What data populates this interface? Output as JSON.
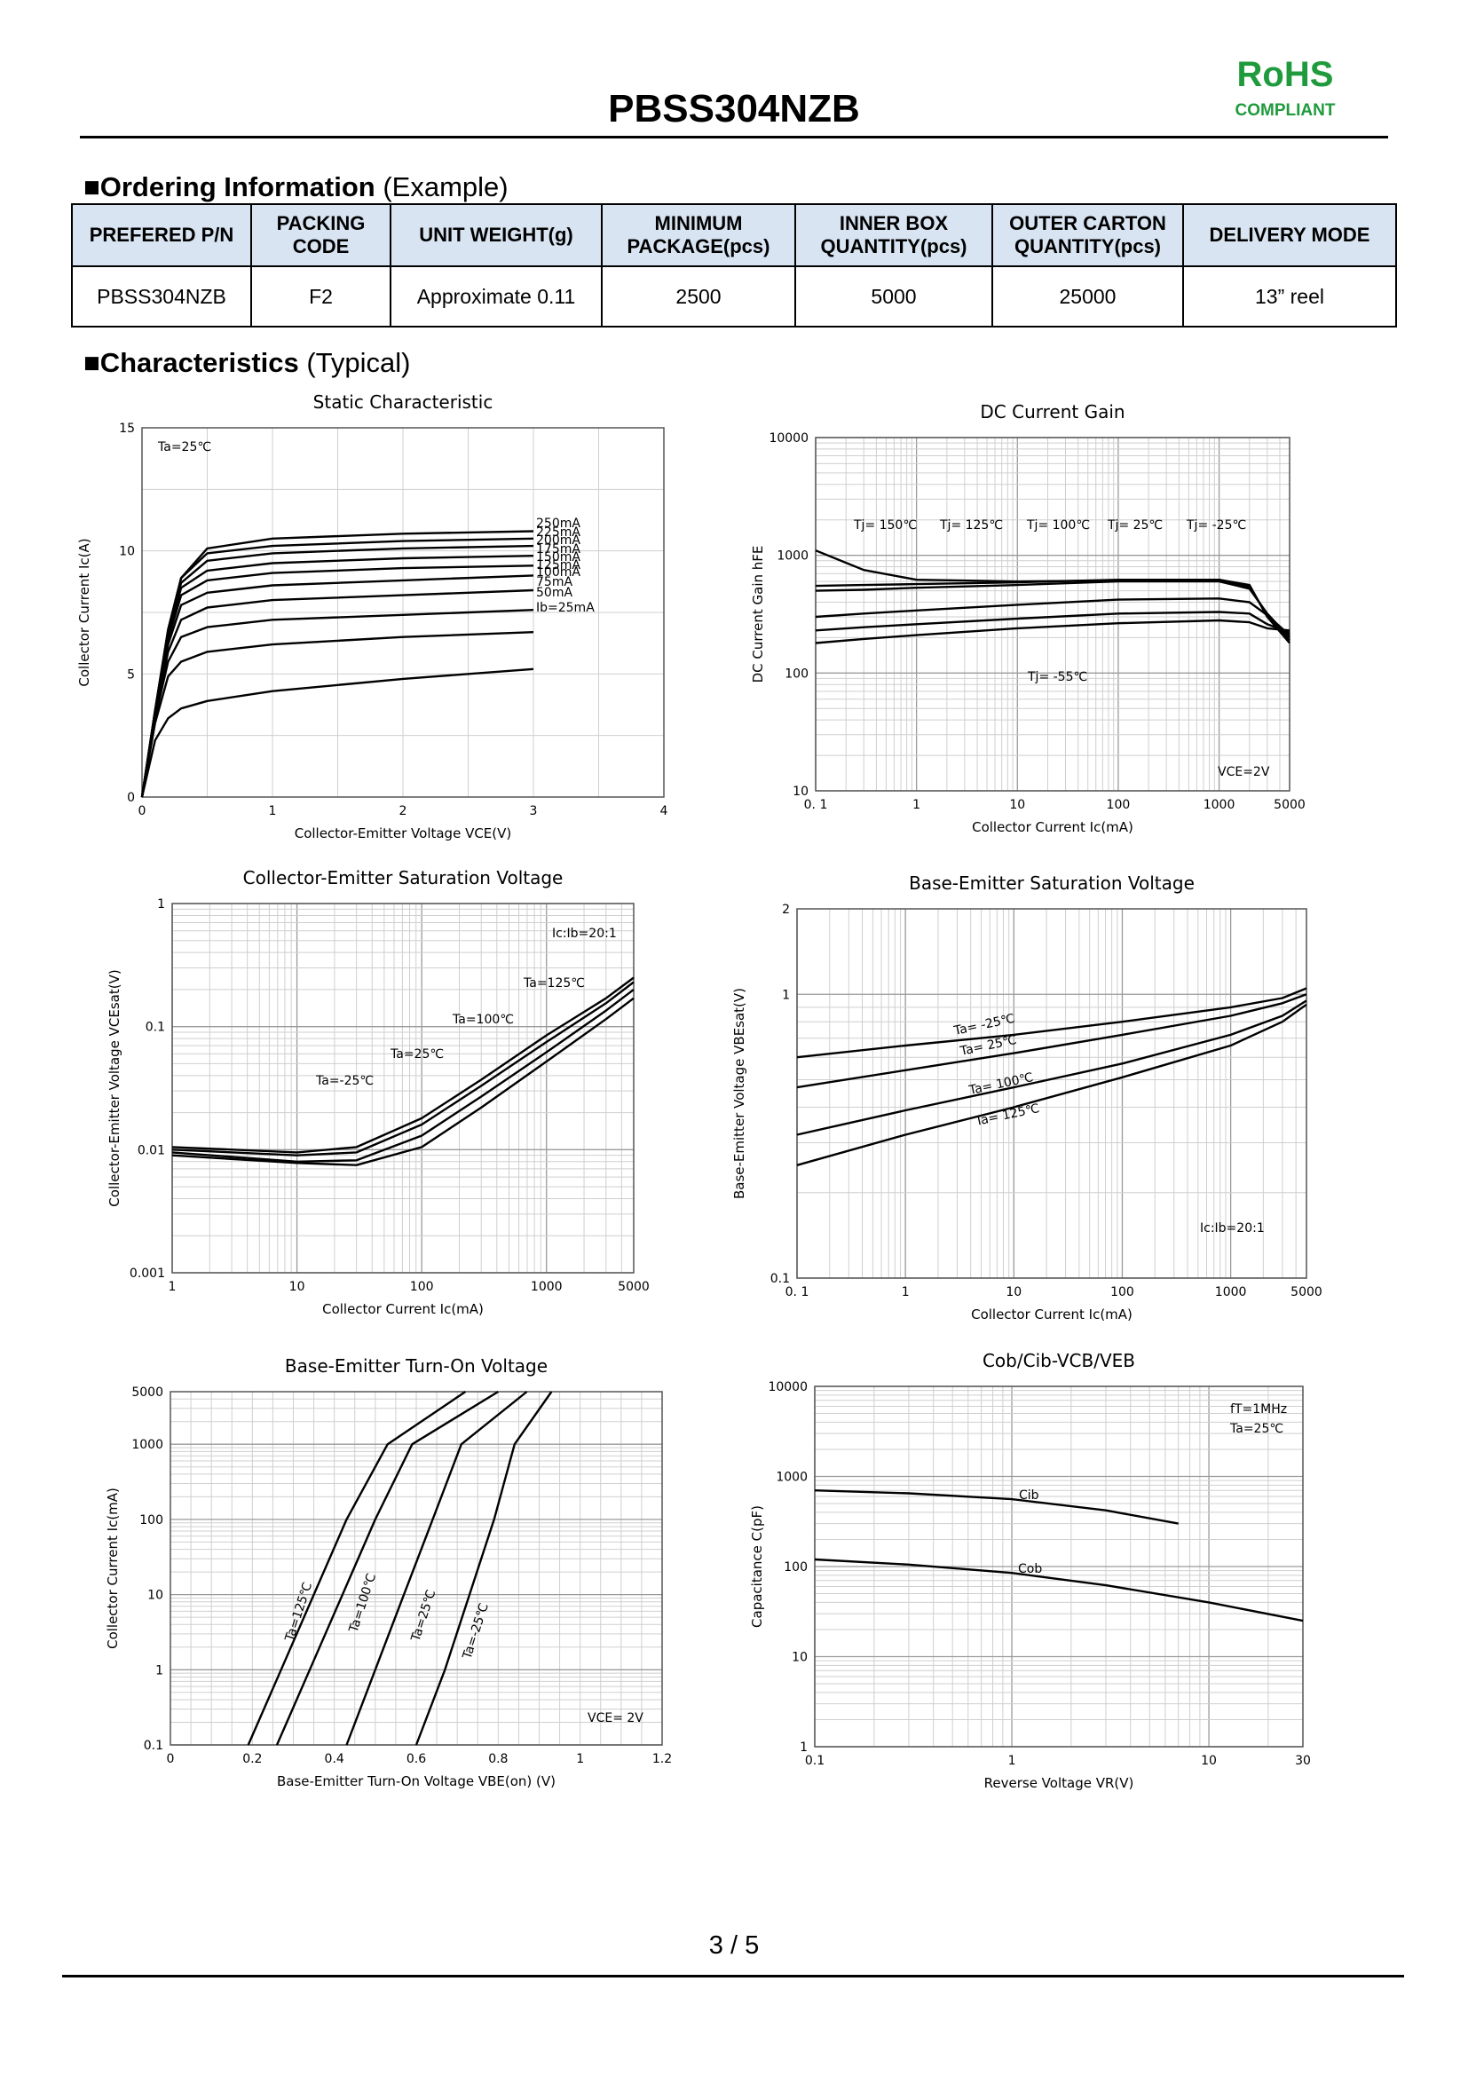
{
  "header": {
    "title": "PBSS304NZB",
    "rohs": "RoHS",
    "compliant": "COMPLIANT"
  },
  "ordering": {
    "heading_bold": "Ordering Information",
    "heading_rest": " (Example)",
    "columns": [
      "PREFERED P/N",
      "PACKING CODE",
      "UNIT WEIGHT(g)",
      "MINIMUM PACKAGE(pcs)",
      "INNER BOX QUANTITY(pcs)",
      "OUTER CARTON QUANTITY(pcs)",
      "DELIVERY MODE"
    ],
    "row": [
      "PBSS304NZB",
      "F2",
      "Approximate 0.11",
      "2500",
      "5000",
      "25000",
      "13” reel"
    ]
  },
  "characteristics": {
    "heading_bold": "Characteristics",
    "heading_rest": " (Typical)"
  },
  "chart_data": [
    {
      "type": "line",
      "title": "Static Characteristic",
      "xlabel": "Collector-Emitter Voltage  VCE(V)",
      "ylabel": "Collector  Current  Ic(A)",
      "xlim": [
        0,
        4
      ],
      "ylim": [
        0,
        15
      ],
      "xticks": [
        "0",
        "1",
        "2",
        "3",
        "4"
      ],
      "yticks": [
        "0",
        "5",
        "10",
        "15"
      ],
      "annotation": "Ta=25℃",
      "x": [
        0,
        0.1,
        0.2,
        0.3,
        0.5,
        1,
        2,
        3,
        3
      ],
      "series": [
        {
          "name": "250mA",
          "values": [
            0,
            3.5,
            6.8,
            8.9,
            10.1,
            10.5,
            10.7,
            10.8,
            10.8
          ]
        },
        {
          "name": "225mA",
          "values": [
            0,
            3.5,
            6.8,
            8.9,
            9.9,
            10.2,
            10.4,
            10.5,
            10.5
          ]
        },
        {
          "name": "200mA",
          "values": [
            0,
            3.5,
            6.7,
            8.7,
            9.6,
            9.9,
            10.1,
            10.2,
            10.2
          ]
        },
        {
          "name": "175mA",
          "values": [
            0,
            3.5,
            6.6,
            8.5,
            9.2,
            9.5,
            9.7,
            9.8,
            9.8
          ]
        },
        {
          "name": "150mA",
          "values": [
            0,
            3.4,
            6.4,
            8.2,
            8.8,
            9.1,
            9.3,
            9.4,
            9.4
          ]
        },
        {
          "name": "125mA",
          "values": [
            0,
            3.4,
            6.2,
            7.8,
            8.3,
            8.6,
            8.8,
            9.0,
            9.0
          ]
        },
        {
          "name": "100mA",
          "values": [
            0,
            3.3,
            5.9,
            7.2,
            7.7,
            8.0,
            8.2,
            8.4,
            8.4
          ]
        },
        {
          "name": "75mA",
          "values": [
            0,
            3.2,
            5.5,
            6.5,
            6.9,
            7.2,
            7.4,
            7.6,
            7.6
          ]
        },
        {
          "name": "50mA",
          "values": [
            0,
            3.0,
            4.9,
            5.5,
            5.9,
            6.2,
            6.5,
            6.7,
            6.7
          ]
        },
        {
          "name": "Ib=25mA",
          "values": [
            0,
            2.3,
            3.2,
            3.6,
            3.9,
            4.3,
            4.8,
            5.2,
            5.2
          ]
        }
      ]
    },
    {
      "type": "line",
      "title": "DC Current Gain",
      "xlabel": "Collector Current   Ic(mA)",
      "ylabel": "DC Current  Gain   hFE",
      "xscale": "log",
      "yscale": "log",
      "xlim": [
        0.1,
        5000
      ],
      "ylim": [
        10,
        10000
      ],
      "xticks": [
        "0. 1",
        "1",
        "10",
        "100",
        "1000",
        "5000"
      ],
      "yticks": [
        "10",
        "100",
        "1000",
        "10000"
      ],
      "annotation": "VCE=2V",
      "x": [
        0.1,
        0.3,
        1,
        10,
        100,
        1000,
        2000,
        3000,
        5000
      ],
      "series": [
        {
          "name": "Tj= 150℃",
          "values": [
            1100,
            750,
            620,
            600,
            610,
            620,
            560,
            300,
            180
          ]
        },
        {
          "name": "Tj= 125℃",
          "values": [
            550,
            560,
            570,
            590,
            620,
            620,
            540,
            310,
            190
          ]
        },
        {
          "name": "Tj= 100℃",
          "values": [
            500,
            510,
            530,
            560,
            600,
            600,
            520,
            320,
            200
          ]
        },
        {
          "name": "Tj= 25℃",
          "values": [
            300,
            320,
            340,
            380,
            420,
            430,
            400,
            310,
            210
          ]
        },
        {
          "name": "Tj= -25℃",
          "values": [
            230,
            245,
            260,
            290,
            320,
            330,
            320,
            260,
            220
          ]
        },
        {
          "name": "Tj= -55℃",
          "values": [
            180,
            195,
            210,
            240,
            265,
            280,
            270,
            240,
            230
          ]
        }
      ]
    },
    {
      "type": "line",
      "title": "Collector-Emitter Saturation Voltage",
      "xlabel": "Collector Current   Ic(mA)",
      "ylabel": "Collector-Emitter Voltage   VCEsat(V)",
      "xscale": "log",
      "yscale": "log",
      "xlim": [
        1,
        5000
      ],
      "ylim": [
        0.001,
        1
      ],
      "xticks": [
        "1",
        "10",
        "100",
        "1000",
        "5000"
      ],
      "yticks": [
        "0.001",
        "0.01",
        "0.1",
        "1"
      ],
      "annotation": "Ic:Ib=20:1",
      "x": [
        1,
        10,
        30,
        100,
        300,
        1000,
        3000,
        5000
      ],
      "series": [
        {
          "name": "Ta=125℃",
          "values": [
            0.0105,
            0.0095,
            0.0105,
            0.018,
            0.037,
            0.085,
            0.17,
            0.25
          ]
        },
        {
          "name": "Ta=100℃",
          "values": [
            0.01,
            0.009,
            0.0095,
            0.016,
            0.033,
            0.075,
            0.155,
            0.23
          ]
        },
        {
          "name": "Ta=25℃",
          "values": [
            0.0095,
            0.008,
            0.0082,
            0.013,
            0.027,
            0.062,
            0.135,
            0.2
          ]
        },
        {
          "name": "Ta=-25℃",
          "values": [
            0.009,
            0.0078,
            0.0075,
            0.0105,
            0.022,
            0.052,
            0.115,
            0.17
          ]
        }
      ]
    },
    {
      "type": "line",
      "title": "Base-Emitter Saturation Voltage",
      "xlabel": "Collector Current   Ic(mA)",
      "ylabel": "Base-Emitter Voltage   VBEsat(V)",
      "xscale": "log",
      "yscale": "log",
      "xlim": [
        0.1,
        5000
      ],
      "ylim": [
        0.1,
        2
      ],
      "xticks": [
        "0. 1",
        "1",
        "10",
        "100",
        "1000",
        "5000"
      ],
      "yticks": [
        "0.1",
        "1",
        "2"
      ],
      "annotation": "Ic:Ib=20:1",
      "x": [
        0.1,
        1,
        10,
        100,
        1000,
        3000,
        5000
      ],
      "series": [
        {
          "name": "Ta= -25℃",
          "values": [
            0.6,
            0.66,
            0.72,
            0.8,
            0.9,
            0.97,
            1.05
          ]
        },
        {
          "name": "Ta= 25℃",
          "values": [
            0.47,
            0.54,
            0.62,
            0.72,
            0.84,
            0.93,
            1.0
          ]
        },
        {
          "name": "Ta= 100℃",
          "values": [
            0.32,
            0.39,
            0.47,
            0.57,
            0.72,
            0.84,
            0.95
          ]
        },
        {
          "name": "Ta= 125℃",
          "values": [
            0.25,
            0.32,
            0.4,
            0.51,
            0.66,
            0.8,
            0.92
          ]
        }
      ]
    },
    {
      "type": "line",
      "title": "Base-Emitter Turn-On Voltage",
      "xlabel": "Base-Emitter Turn-On Voltage  VBE(on)  (V)",
      "ylabel": "Collector Current   Ic(mA)",
      "yscale": "log",
      "xlim": [
        0,
        1.2
      ],
      "ylim": [
        0.1,
        5000
      ],
      "xticks": [
        "0",
        "0.2",
        "0.4",
        "0.6",
        "0.8",
        "1",
        "1.2"
      ],
      "yticks": [
        "0.1",
        "1",
        "10",
        "100",
        "1000",
        "5000"
      ],
      "annotation": "VCE= 2V",
      "y": [
        0.1,
        1,
        10,
        100,
        1000,
        5000
      ],
      "series": [
        {
          "name": "Ta=125℃",
          "values": [
            0.19,
            0.27,
            0.35,
            0.43,
            0.53,
            0.72
          ]
        },
        {
          "name": "Ta=100℃",
          "values": [
            0.26,
            0.34,
            0.42,
            0.5,
            0.59,
            0.8
          ]
        },
        {
          "name": "Ta=25℃",
          "values": [
            0.43,
            0.5,
            0.57,
            0.64,
            0.71,
            0.87
          ]
        },
        {
          "name": "Ta=-25℃",
          "values": [
            0.6,
            0.67,
            0.73,
            0.79,
            0.84,
            0.93
          ]
        }
      ]
    },
    {
      "type": "line",
      "title": "Cob/Cib-VCB/VEB",
      "xlabel": "Reverse Voltage   VR(V)",
      "ylabel": "Capacitance   C(pF)",
      "xscale": "log",
      "yscale": "log",
      "xlim": [
        0.1,
        30
      ],
      "ylim": [
        1,
        10000
      ],
      "xticks": [
        "0.1",
        "1",
        "10",
        "30"
      ],
      "yticks": [
        "1",
        "10",
        "100",
        "1000",
        "10000"
      ],
      "annotation": [
        "fT=1MHz",
        "Ta=25℃"
      ],
      "series": [
        {
          "name": "Cib",
          "x": [
            0.1,
            0.3,
            1,
            3,
            7
          ],
          "values": [
            700,
            650,
            560,
            420,
            300
          ]
        },
        {
          "name": "Cob",
          "x": [
            0.1,
            0.3,
            1,
            3,
            10,
            30
          ],
          "values": [
            120,
            105,
            85,
            62,
            40,
            25
          ]
        }
      ]
    }
  ]
}
